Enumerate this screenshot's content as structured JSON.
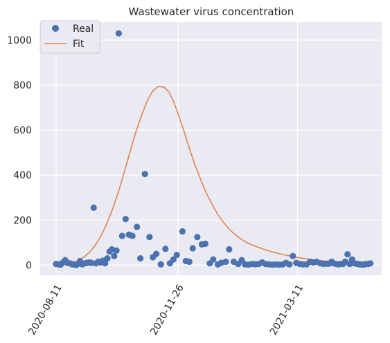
{
  "chart_data": {
    "type": "scatter",
    "title": "Wastewater virus concentration",
    "xlabel": "",
    "ylabel": "",
    "x_range": [
      "2020-07-28",
      "2021-05-24"
    ],
    "ylim": [
      -45,
      1080
    ],
    "grid": true,
    "background": "#EAEAF2",
    "legend_position": "top-left",
    "x_ticks": [
      "2020-08-11",
      "2020-11-26",
      "2021-03-11"
    ],
    "y_ticks": [
      0,
      200,
      400,
      600,
      800,
      1000
    ],
    "series": [
      {
        "name": "Real",
        "kind": "points",
        "color": "#4C72B0",
        "x": [
          "2020-08-11",
          "2020-08-13",
          "2020-08-15",
          "2020-08-17",
          "2020-08-19",
          "2020-08-21",
          "2020-08-23",
          "2020-08-25",
          "2020-08-27",
          "2020-08-29",
          "2020-09-01",
          "2020-09-03",
          "2020-09-05",
          "2020-09-07",
          "2020-09-09",
          "2020-09-11",
          "2020-09-13",
          "2020-09-15",
          "2020-09-17",
          "2020-09-19",
          "2020-09-21",
          "2020-09-23",
          "2020-09-25",
          "2020-09-27",
          "2020-09-29",
          "2020-10-01",
          "2020-10-03",
          "2020-10-05",
          "2020-10-08",
          "2020-10-11",
          "2020-10-14",
          "2020-10-17",
          "2020-10-21",
          "2020-10-24",
          "2020-10-28",
          "2020-11-01",
          "2020-11-04",
          "2020-11-07",
          "2020-11-11",
          "2020-11-15",
          "2020-11-19",
          "2020-11-22",
          "2020-11-25",
          "2020-11-30",
          "2020-12-03",
          "2020-12-06",
          "2020-12-09",
          "2020-12-13",
          "2020-12-17",
          "2020-12-20",
          "2020-12-24",
          "2020-12-27",
          "2020-12-31",
          "2021-01-03",
          "2021-01-07",
          "2021-01-10",
          "2021-01-14",
          "2021-01-18",
          "2021-01-21",
          "2021-01-24",
          "2021-01-27",
          "2021-01-30",
          "2021-02-02",
          "2021-02-05",
          "2021-02-08",
          "2021-02-11",
          "2021-02-14",
          "2021-02-17",
          "2021-02-20",
          "2021-02-23",
          "2021-02-26",
          "2021-03-01",
          "2021-03-04",
          "2021-03-07",
          "2021-03-10",
          "2021-03-13",
          "2021-03-16",
          "2021-03-19",
          "2021-03-22",
          "2021-03-25",
          "2021-03-28",
          "2021-03-31",
          "2021-04-03",
          "2021-04-06",
          "2021-04-08",
          "2021-04-10",
          "2021-04-12",
          "2021-04-14",
          "2021-04-16",
          "2021-04-18",
          "2021-04-20",
          "2021-04-22",
          "2021-04-24",
          "2021-04-26",
          "2021-04-28",
          "2021-04-30",
          "2021-05-02",
          "2021-05-04",
          "2021-05-06",
          "2021-05-08",
          "2021-05-10",
          "2021-05-12",
          "2021-05-14"
        ],
        "y": [
          5,
          3,
          2,
          12,
          22,
          10,
          8,
          4,
          2,
          1,
          18,
          3,
          8,
          10,
          12,
          10,
          255,
          8,
          15,
          12,
          20,
          8,
          30,
          60,
          70,
          40,
          65,
          1030,
          130,
          205,
          135,
          130,
          170,
          30,
          405,
          125,
          35,
          50,
          3,
          72,
          8,
          25,
          45,
          150,
          18,
          15,
          75,
          125,
          92,
          95,
          8,
          25,
          3,
          10,
          15,
          70,
          15,
          5,
          22,
          3,
          2,
          5,
          4,
          5,
          12,
          5,
          3,
          2,
          3,
          2,
          3,
          10,
          3,
          40,
          10,
          5,
          3,
          3,
          15,
          12,
          15,
          8,
          5,
          6,
          7,
          15,
          8,
          5,
          3,
          5,
          5,
          15,
          48,
          5,
          25,
          8,
          6,
          4,
          3,
          2,
          5,
          5,
          8
        ]
      },
      {
        "name": "Fit",
        "kind": "line",
        "color": "#DD8452",
        "x": [
          "2020-08-11",
          "2020-08-16",
          "2020-08-21",
          "2020-08-26",
          "2020-08-31",
          "2020-09-05",
          "2020-09-10",
          "2020-09-15",
          "2020-09-20",
          "2020-09-25",
          "2020-09-30",
          "2020-10-05",
          "2020-10-10",
          "2020-10-15",
          "2020-10-20",
          "2020-10-25",
          "2020-10-30",
          "2020-11-04",
          "2020-11-09",
          "2020-11-14",
          "2020-11-18",
          "2020-11-22",
          "2020-11-26",
          "2020-12-01",
          "2020-12-06",
          "2020-12-11",
          "2020-12-16",
          "2020-12-21",
          "2020-12-26",
          "2020-12-31",
          "2021-01-05",
          "2021-01-10",
          "2021-01-15",
          "2021-01-20",
          "2021-01-25",
          "2021-01-30",
          "2021-02-04",
          "2021-02-09",
          "2021-02-14",
          "2021-02-19",
          "2021-02-24",
          "2021-03-01",
          "2021-03-06",
          "2021-03-11",
          "2021-03-16",
          "2021-03-21",
          "2021-03-26",
          "2021-03-31",
          "2021-04-05",
          "2021-04-10",
          "2021-04-15",
          "2021-04-20",
          "2021-04-25",
          "2021-04-30",
          "2021-05-05",
          "2021-05-10",
          "2021-05-14"
        ],
        "y": [
          0,
          2,
          6,
          12,
          22,
          38,
          60,
          92,
          135,
          190,
          255,
          330,
          415,
          505,
          590,
          665,
          730,
          775,
          795,
          790,
          770,
          730,
          675,
          600,
          520,
          445,
          380,
          320,
          270,
          225,
          190,
          160,
          137,
          117,
          102,
          90,
          80,
          71,
          63,
          56,
          50,
          44,
          39,
          34,
          30,
          27,
          23,
          20,
          18,
          15,
          13,
          11,
          9,
          7,
          5,
          3,
          2
        ]
      }
    ]
  }
}
